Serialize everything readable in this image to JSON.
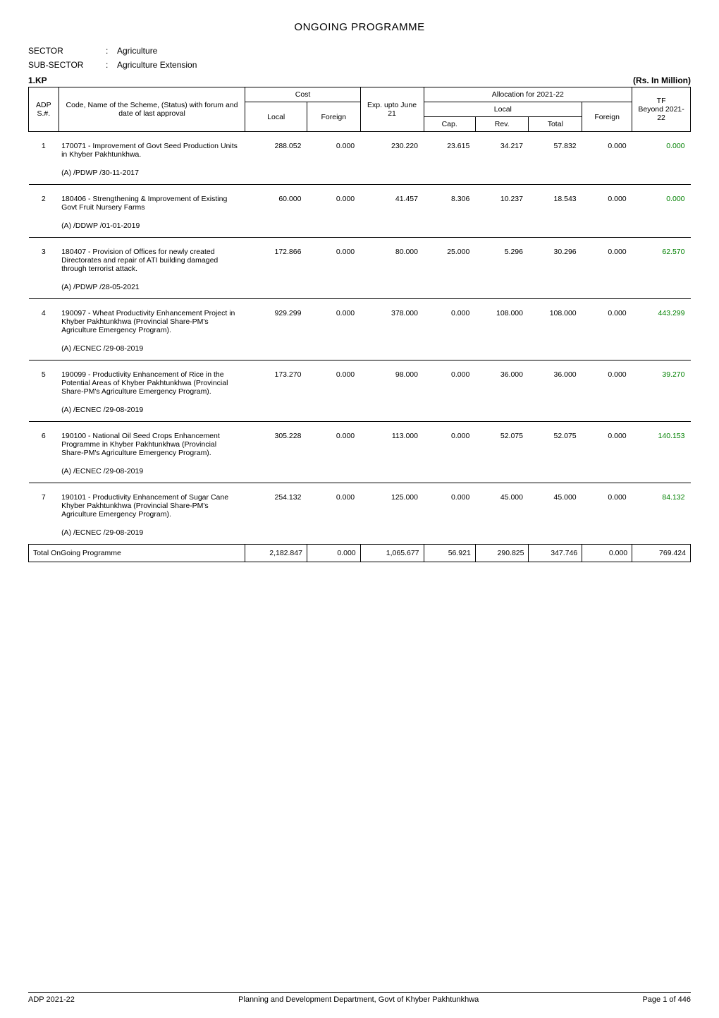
{
  "title": "ONGOING PROGRAMME",
  "meta": {
    "sector_label": "SECTOR",
    "sector_value": "Agriculture",
    "subsector_label": "SUB-SECTOR",
    "subsector_value": "Agriculture Extension",
    "colon": ":"
  },
  "kp": {
    "left": "1.KP",
    "right": "(Rs. In Million)"
  },
  "headers": {
    "adp": "ADP",
    "sno": "S.#.",
    "code": "Code, Name of the Scheme, (Status) with forum and date of last approval",
    "cost": "Cost",
    "cost_local": "Local",
    "cost_foreign": "Foreign",
    "exp": "Exp. upto June 21",
    "alloc": "Allocation for 2021-22",
    "alloc_local": "Local",
    "cap": "Cap.",
    "rev": "Rev.",
    "total": "Total",
    "foreign2": "Foreign",
    "tf": "TF",
    "beyond": "Beyond 2021-22"
  },
  "rows": [
    {
      "sno": "1",
      "scheme": "170071 - Improvement of Govt Seed Production Units in Khyber Pakhtunkhwa.",
      "approval": "(A)  /PDWP /30-11-2017",
      "cost_local": "288.052",
      "cost_foreign": "0.000",
      "exp": "230.220",
      "cap": "23.615",
      "rev": "34.217",
      "total": "57.832",
      "foreign2": "0.000",
      "tf": "0.000"
    },
    {
      "sno": "2",
      "scheme": "180406 - Strengthening & Improvement of Existing Govt Fruit Nursery Farms",
      "approval": "(A)  /DDWP /01-01-2019",
      "cost_local": "60.000",
      "cost_foreign": "0.000",
      "exp": "41.457",
      "cap": "8.306",
      "rev": "10.237",
      "total": "18.543",
      "foreign2": "0.000",
      "tf": "0.000"
    },
    {
      "sno": "3",
      "scheme": "180407 - Provision of Offices for newly created Directorates and repair of ATI building damaged through terrorist attack.",
      "approval": "(A)  /PDWP /28-05-2021",
      "cost_local": "172.866",
      "cost_foreign": "0.000",
      "exp": "80.000",
      "cap": "25.000",
      "rev": "5.296",
      "total": "30.296",
      "foreign2": "0.000",
      "tf": "62.570"
    },
    {
      "sno": "4",
      "scheme": "190097 - Wheat Productivity Enhancement Project in Khyber Pakhtunkhwa (Provincial Share-PM's Agriculture Emergency Program).",
      "approval": "(A)  /ECNEC /29-08-2019",
      "cost_local": "929.299",
      "cost_foreign": "0.000",
      "exp": "378.000",
      "cap": "0.000",
      "rev": "108.000",
      "total": "108.000",
      "foreign2": "0.000",
      "tf": "443.299"
    },
    {
      "sno": "5",
      "scheme": "190099 - Productivity Enhancement of Rice in the Potential Areas of Khyber Pakhtunkhwa (Provincial Share-PM's Agriculture Emergency Program).",
      "approval": "(A)  /ECNEC /29-08-2019",
      "cost_local": "173.270",
      "cost_foreign": "0.000",
      "exp": "98.000",
      "cap": "0.000",
      "rev": "36.000",
      "total": "36.000",
      "foreign2": "0.000",
      "tf": "39.270"
    },
    {
      "sno": "6",
      "scheme": "190100 - National Oil Seed Crops Enhancement Programme in Khyber Pakhtunkhwa (Provincial Share-PM's Agriculture Emergency Program).",
      "approval": "(A)  /ECNEC /29-08-2019",
      "cost_local": "305.228",
      "cost_foreign": "0.000",
      "exp": "113.000",
      "cap": "0.000",
      "rev": "52.075",
      "total": "52.075",
      "foreign2": "0.000",
      "tf": "140.153"
    },
    {
      "sno": "7",
      "scheme": "190101 - Productivity Enhancement of Sugar Cane Khyber Pakhtunkhwa (Provincial Share-PM's Agriculture Emergency Program).",
      "approval": "(A)  /ECNEC /29-08-2019",
      "cost_local": "254.132",
      "cost_foreign": "0.000",
      "exp": "125.000",
      "cap": "0.000",
      "rev": "45.000",
      "total": "45.000",
      "foreign2": "0.000",
      "tf": "84.132"
    }
  ],
  "total_row": {
    "label": "Total OnGoing Programme",
    "cost_local": "2,182.847",
    "cost_foreign": "0.000",
    "exp": "1,065.677",
    "cap": "56.921",
    "rev": "290.825",
    "total": "347.746",
    "foreign2": "0.000",
    "tf": "769.424"
  },
  "footer": {
    "left": "ADP 2021-22",
    "center": "Planning and Development Department, Govt of Khyber Pakhtunkhwa",
    "right": "Page 1 of 446"
  },
  "colors": {
    "tf_green": "#008000"
  }
}
